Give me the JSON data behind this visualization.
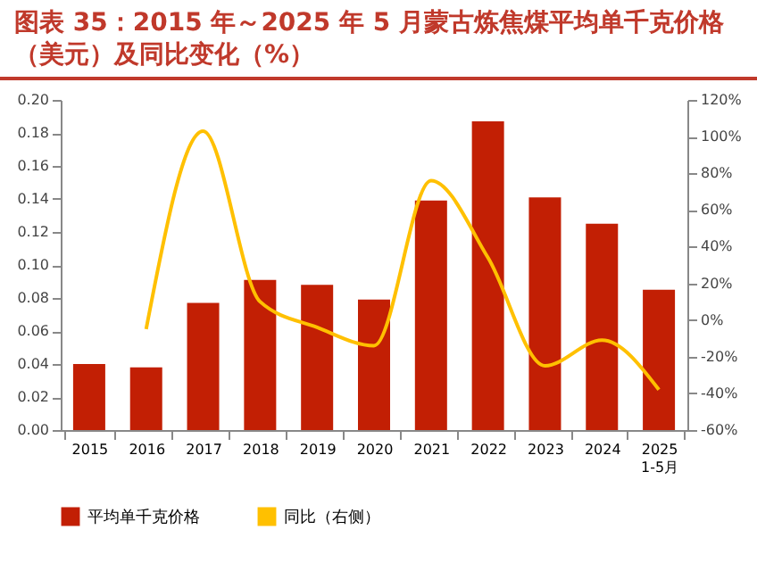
{
  "chart_data": {
    "type": "bar",
    "title": "图表 35：2015 年～2025 年 5 月蒙古炼焦煤平均单千克价格（美元）及同比变化（%）",
    "categories": [
      "2015",
      "2016",
      "2017",
      "2018",
      "2019",
      "2020",
      "2021",
      "2022",
      "2023",
      "2024",
      "2025 1-5月"
    ],
    "series": [
      {
        "name": "平均单千克价格",
        "color": "#c21f04",
        "values": [
          0.04,
          0.038,
          0.077,
          0.091,
          0.088,
          0.079,
          0.139,
          0.187,
          0.141,
          0.125,
          0.085
        ]
      },
      {
        "name": "同比（右侧）",
        "type": "line",
        "axis": "y2",
        "color": "#ffc000",
        "values": [
          null,
          -5,
          103,
          10,
          -4,
          -14,
          76,
          34,
          -25,
          -11,
          -38
        ]
      }
    ],
    "ylim": [
      0,
      0.2
    ],
    "yticks": [
      {
        "value": 0,
        "label": "0.00"
      },
      {
        "value": 0.02,
        "label": "0.02"
      },
      {
        "value": 0.04,
        "label": "0.04"
      },
      {
        "value": 0.06,
        "label": "0.06"
      },
      {
        "value": 0.08,
        "label": "0.08"
      },
      {
        "value": 0.1,
        "label": "0.10"
      },
      {
        "value": 0.12,
        "label": "0.12"
      },
      {
        "value": 0.14,
        "label": "0.14"
      },
      {
        "value": 0.16,
        "label": "0.16"
      },
      {
        "value": 0.18,
        "label": "0.18"
      },
      {
        "value": 0.2,
        "label": "0.20"
      }
    ],
    "y2lim": [
      -60,
      120
    ],
    "y2ticks": [
      {
        "value": -60,
        "label": "-60%"
      },
      {
        "value": -40,
        "label": "-40%"
      },
      {
        "value": -20,
        "label": "-20%"
      },
      {
        "value": 0,
        "label": "0%"
      },
      {
        "value": 20,
        "label": "20%"
      },
      {
        "value": 40,
        "label": "40%"
      },
      {
        "value": 60,
        "label": "60%"
      },
      {
        "value": 80,
        "label": "80%"
      },
      {
        "value": 100,
        "label": "100%"
      },
      {
        "value": 120,
        "label": "120%"
      }
    ],
    "grid": false,
    "legend": "bottom",
    "marker": "none"
  }
}
